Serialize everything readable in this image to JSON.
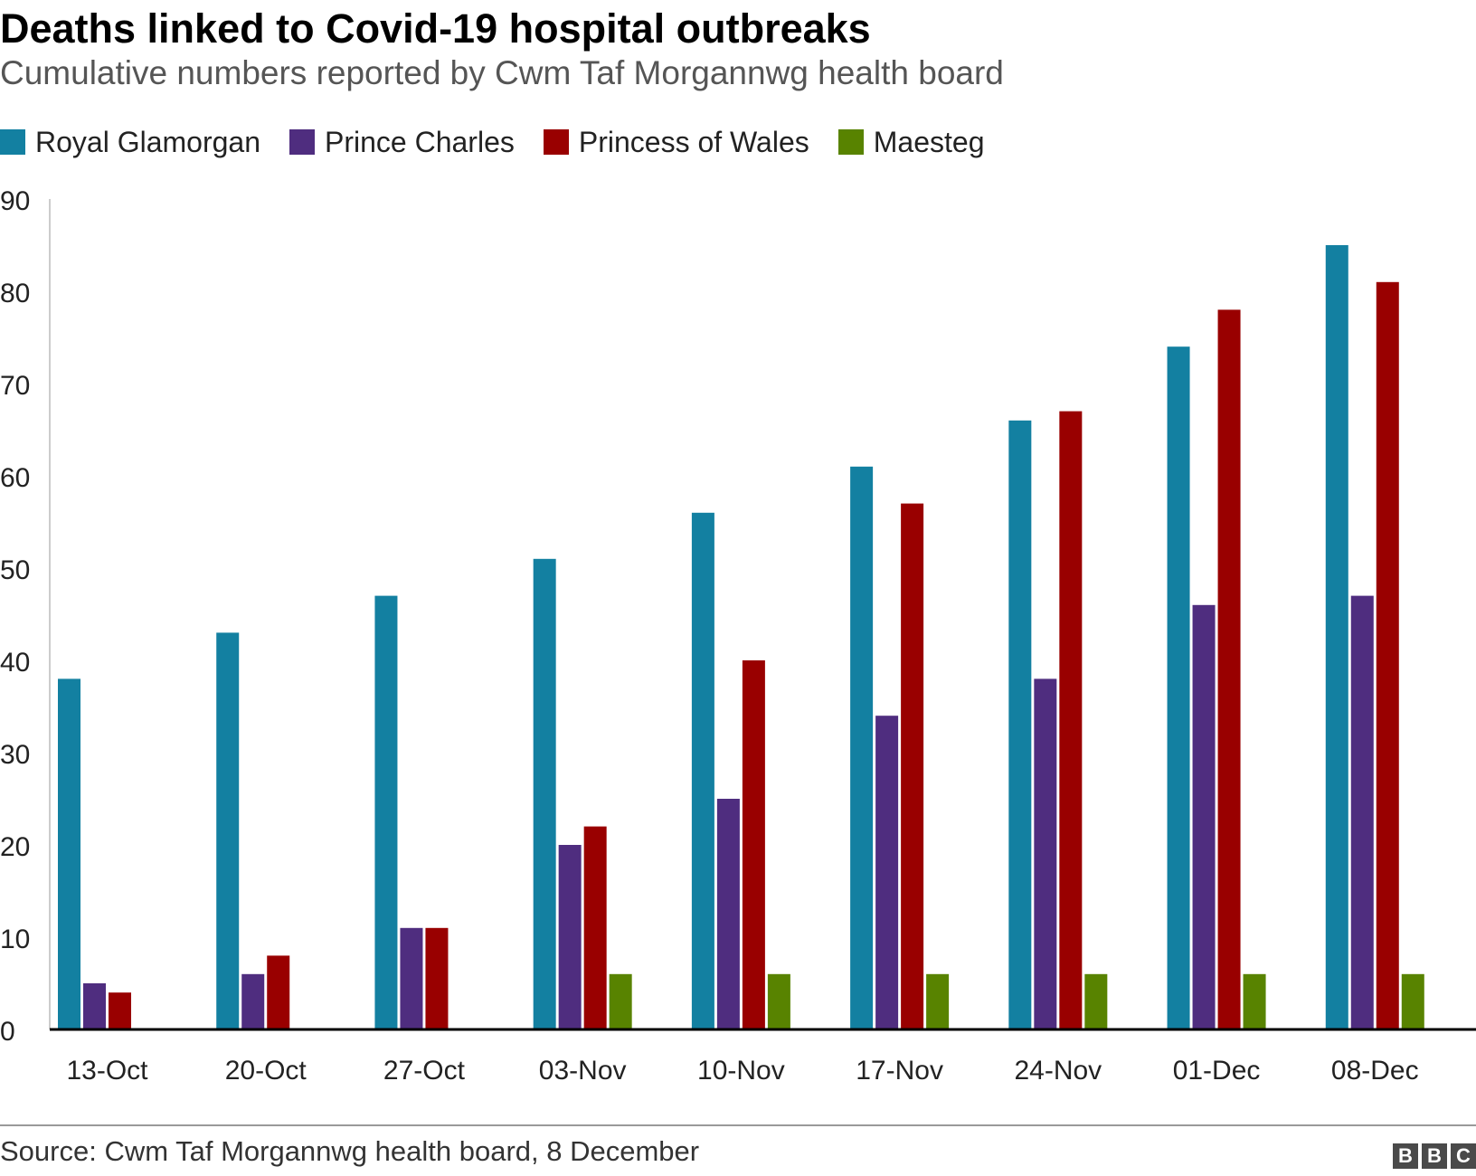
{
  "chart_data": {
    "type": "bar",
    "title": "Deaths linked to Covid-19 hospital outbreaks",
    "subtitle": "Cumulative numbers reported by Cwm Taf Morgannwg health board",
    "categories": [
      "13-Oct",
      "20-Oct",
      "27-Oct",
      "03-Nov",
      "10-Nov",
      "17-Nov",
      "24-Nov",
      "01-Dec",
      "08-Dec"
    ],
    "series": [
      {
        "name": "Royal Glamorgan",
        "color": "#1380a1",
        "values": [
          38,
          43,
          47,
          51,
          56,
          61,
          66,
          74,
          85
        ]
      },
      {
        "name": "Prince Charles",
        "color": "#4f2d7f",
        "values": [
          5,
          6,
          11,
          20,
          25,
          34,
          38,
          46,
          47
        ]
      },
      {
        "name": "Princess of Wales",
        "color": "#990000",
        "values": [
          4,
          8,
          11,
          22,
          40,
          57,
          67,
          78,
          81
        ]
      },
      {
        "name": "Maesteg",
        "color": "#588300",
        "values": [
          0,
          0,
          0,
          6,
          6,
          6,
          6,
          6,
          6
        ]
      }
    ],
    "xlabel": "",
    "ylabel": "",
    "ylim": [
      0,
      90
    ],
    "yticks": [
      0,
      10,
      20,
      30,
      40,
      50,
      60,
      70,
      80,
      90
    ],
    "grid": false,
    "legend": "top-left"
  },
  "footer": {
    "source": "Source: Cwm Taf Morgannwg health board, 8 December",
    "logo_letters": [
      "B",
      "B",
      "C"
    ]
  }
}
